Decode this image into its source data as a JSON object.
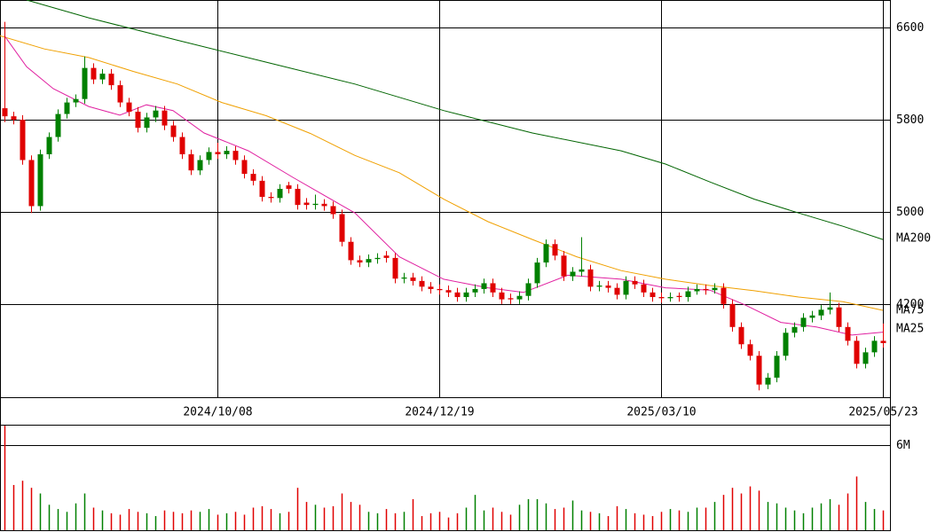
{
  "chart_data": [
    {
      "type": "candlestick",
      "up_color": "#008000",
      "down_color": "#e00000",
      "xlim": [
        -0.5,
        99.5
      ],
      "xticks": [
        {
          "value": 24,
          "label": "2024/10/08"
        },
        {
          "value": 49,
          "label": "2024/12/19"
        },
        {
          "value": 74,
          "label": "2025/03/10"
        },
        {
          "value": 99,
          "label": "2025/05/23"
        }
      ],
      "ylim": [
        3390,
        6840
      ],
      "yticks": [
        4200,
        5000,
        5800,
        6600
      ],
      "grid": true,
      "ohlc": [
        [
          5900,
          6650,
          5780,
          5830
        ],
        [
          5830,
          5870,
          5760,
          5800
        ],
        [
          5800,
          5840,
          5410,
          5450
        ],
        [
          5450,
          5490,
          4990,
          5050
        ],
        [
          5050,
          5540,
          5010,
          5500
        ],
        [
          5500,
          5690,
          5460,
          5650
        ],
        [
          5650,
          5890,
          5610,
          5850
        ],
        [
          5850,
          5990,
          5810,
          5950
        ],
        [
          5950,
          6020,
          5910,
          5980
        ],
        [
          5980,
          6350,
          5940,
          6250
        ],
        [
          6250,
          6290,
          6110,
          6150
        ],
        [
          6150,
          6240,
          6110,
          6200
        ],
        [
          6200,
          6240,
          6060,
          6100
        ],
        [
          6100,
          6140,
          5910,
          5950
        ],
        [
          5950,
          5990,
          5830,
          5870
        ],
        [
          5870,
          5910,
          5690,
          5730
        ],
        [
          5730,
          5860,
          5690,
          5820
        ],
        [
          5820,
          5920,
          5780,
          5880
        ],
        [
          5880,
          5920,
          5710,
          5750
        ],
        [
          5750,
          5790,
          5610,
          5650
        ],
        [
          5650,
          5690,
          5460,
          5500
        ],
        [
          5500,
          5540,
          5320,
          5360
        ],
        [
          5360,
          5490,
          5320,
          5450
        ],
        [
          5450,
          5560,
          5410,
          5520
        ],
        [
          5520,
          5600,
          5460,
          5500
        ],
        [
          5500,
          5570,
          5460,
          5530
        ],
        [
          5530,
          5570,
          5410,
          5450
        ],
        [
          5450,
          5490,
          5290,
          5330
        ],
        [
          5330,
          5370,
          5230,
          5270
        ],
        [
          5270,
          5310,
          5090,
          5130
        ],
        [
          5130,
          5170,
          5080,
          5120
        ],
        [
          5120,
          5240,
          5080,
          5200
        ],
        [
          5230,
          5260,
          5160,
          5200
        ],
        [
          5200,
          5240,
          5020,
          5060
        ],
        [
          5080,
          5120,
          5020,
          5060
        ],
        [
          5060,
          5150,
          5020,
          5070
        ],
        [
          5070,
          5110,
          5010,
          5050
        ],
        [
          5050,
          5090,
          4940,
          4980
        ],
        [
          4980,
          5020,
          4700,
          4740
        ],
        [
          4740,
          4780,
          4540,
          4580
        ],
        [
          4580,
          4620,
          4520,
          4560
        ],
        [
          4560,
          4630,
          4520,
          4590
        ],
        [
          4590,
          4640,
          4550,
          4600
        ],
        [
          4620,
          4660,
          4560,
          4600
        ],
        [
          4600,
          4640,
          4380,
          4420
        ],
        [
          4420,
          4470,
          4380,
          4430
        ],
        [
          4430,
          4470,
          4360,
          4400
        ],
        [
          4400,
          4440,
          4310,
          4350
        ],
        [
          4350,
          4390,
          4290,
          4330
        ],
        [
          4330,
          4370,
          4280,
          4320
        ],
        [
          4320,
          4360,
          4260,
          4300
        ],
        [
          4300,
          4340,
          4220,
          4260
        ],
        [
          4260,
          4340,
          4220,
          4300
        ],
        [
          4300,
          4370,
          4260,
          4330
        ],
        [
          4330,
          4420,
          4290,
          4380
        ],
        [
          4380,
          4420,
          4260,
          4300
        ],
        [
          4300,
          4340,
          4200,
          4240
        ],
        [
          4250,
          4290,
          4200,
          4240
        ],
        [
          4240,
          4310,
          4200,
          4270
        ],
        [
          4270,
          4420,
          4230,
          4380
        ],
        [
          4380,
          4600,
          4340,
          4560
        ],
        [
          4560,
          4760,
          4520,
          4720
        ],
        [
          4720,
          4760,
          4580,
          4620
        ],
        [
          4620,
          4660,
          4400,
          4440
        ],
        [
          4440,
          4520,
          4400,
          4480
        ],
        [
          4480,
          4780,
          4440,
          4500
        ],
        [
          4500,
          4540,
          4310,
          4350
        ],
        [
          4350,
          4400,
          4310,
          4360
        ],
        [
          4360,
          4400,
          4300,
          4340
        ],
        [
          4340,
          4380,
          4240,
          4280
        ],
        [
          4280,
          4440,
          4240,
          4400
        ],
        [
          4400,
          4440,
          4330,
          4370
        ],
        [
          4370,
          4410,
          4260,
          4300
        ],
        [
          4300,
          4340,
          4220,
          4260
        ],
        [
          4260,
          4300,
          4210,
          4250
        ],
        [
          4250,
          4300,
          4220,
          4260
        ],
        [
          4270,
          4300,
          4220,
          4260
        ],
        [
          4260,
          4350,
          4220,
          4310
        ],
        [
          4310,
          4370,
          4280,
          4330
        ],
        [
          4330,
          4370,
          4280,
          4320
        ],
        [
          4320,
          4380,
          4290,
          4340
        ],
        [
          4340,
          4380,
          4160,
          4200
        ],
        [
          4200,
          4240,
          3960,
          4000
        ],
        [
          4000,
          4040,
          3810,
          3850
        ],
        [
          3850,
          3890,
          3710,
          3750
        ],
        [
          3750,
          3790,
          3450,
          3500
        ],
        [
          3500,
          3600,
          3460,
          3560
        ],
        [
          3560,
          3790,
          3520,
          3750
        ],
        [
          3750,
          3990,
          3710,
          3950
        ],
        [
          3950,
          4040,
          3910,
          4000
        ],
        [
          4000,
          4120,
          3960,
          4080
        ],
        [
          4080,
          4140,
          4040,
          4100
        ],
        [
          4100,
          4190,
          4060,
          4150
        ],
        [
          4150,
          4300,
          4110,
          4170
        ],
        [
          4170,
          4210,
          3960,
          4000
        ],
        [
          4000,
          4040,
          3840,
          3880
        ],
        [
          3880,
          3920,
          3640,
          3680
        ],
        [
          3680,
          3820,
          3640,
          3780
        ],
        [
          3780,
          3920,
          3740,
          3880
        ],
        [
          3880,
          4030,
          3820,
          3860
        ]
      ],
      "lines": [
        {
          "name": "MA200",
          "color": "#006400",
          "x": [
            2.5,
            9.5,
            19.5,
            29.5,
            39.5,
            49.5,
            59.5,
            69.5,
            74.5,
            79.5,
            84.5,
            89.5,
            94.5,
            99
          ],
          "values": [
            6840,
            6685,
            6490,
            6300,
            6110,
            5880,
            5685,
            5530,
            5415,
            5260,
            5110,
            4990,
            4875,
            4760
          ]
        },
        {
          "name": "MA75",
          "color": "#f0a000",
          "x": [
            -0.5,
            4.5,
            9.5,
            14.5,
            19.5,
            24.5,
            29.5,
            34.5,
            39.5,
            44.5,
            49.5,
            54.5,
            59.5,
            64.5,
            69.5,
            74.5,
            79.5,
            84.5,
            89.5,
            94.5,
            99
          ],
          "values": [
            6530,
            6415,
            6340,
            6220,
            6110,
            5950,
            5835,
            5680,
            5490,
            5340,
            5110,
            4915,
            4760,
            4610,
            4490,
            4415,
            4360,
            4315,
            4260,
            4220,
            4145
          ]
        },
        {
          "name": "MA25",
          "color": "#e020a0",
          "x": [
            0,
            2.5,
            5.5,
            9.5,
            13,
            16,
            19,
            22.5,
            27.5,
            32.5,
            39.5,
            44.5,
            49.5,
            54.5,
            58.5,
            63.5,
            69.5,
            74.5,
            79.5,
            83.5,
            87.5,
            91.5,
            95.5,
            99
          ],
          "values": [
            6530,
            6260,
            6070,
            5915,
            5840,
            5930,
            5880,
            5685,
            5530,
            5300,
            4990,
            4610,
            4415,
            4340,
            4300,
            4450,
            4415,
            4340,
            4320,
            4190,
            4040,
            4000,
            3930,
            3955
          ]
        }
      ]
    },
    {
      "type": "bar",
      "ylim": [
        0,
        7.4
      ],
      "yticks": [
        {
          "value": 6,
          "label": "6M"
        }
      ],
      "values": [
        7.4,
        3.2,
        3.5,
        3.0,
        2.6,
        1.8,
        1.5,
        1.3,
        1.9,
        2.6,
        1.6,
        1.4,
        1.2,
        1.1,
        1.5,
        1.3,
        1.2,
        1.0,
        1.4,
        1.3,
        1.2,
        1.4,
        1.3,
        1.5,
        1.1,
        1.2,
        1.3,
        1.1,
        1.6,
        1.7,
        1.5,
        1.2,
        1.3,
        3.0,
        2.0,
        1.8,
        1.6,
        1.7,
        2.6,
        2.0,
        1.8,
        1.3,
        1.2,
        1.5,
        1.2,
        1.3,
        2.2,
        1.0,
        1.2,
        1.3,
        0.9,
        1.2,
        1.6,
        2.5,
        1.4,
        1.6,
        1.3,
        1.1,
        1.8,
        2.2,
        2.2,
        1.9,
        1.5,
        1.6,
        2.1,
        1.4,
        1.3,
        1.2,
        1.0,
        1.7,
        1.5,
        1.2,
        1.1,
        1.0,
        1.3,
        1.5,
        1.4,
        1.3,
        1.6,
        1.6,
        2.0,
        2.5,
        3.0,
        2.6,
        3.1,
        2.8,
        2.0,
        1.9,
        1.6,
        1.4,
        1.2,
        1.6,
        1.9,
        2.2,
        1.8,
        2.6,
        3.8,
        2.0,
        1.5,
        1.4
      ]
    }
  ]
}
